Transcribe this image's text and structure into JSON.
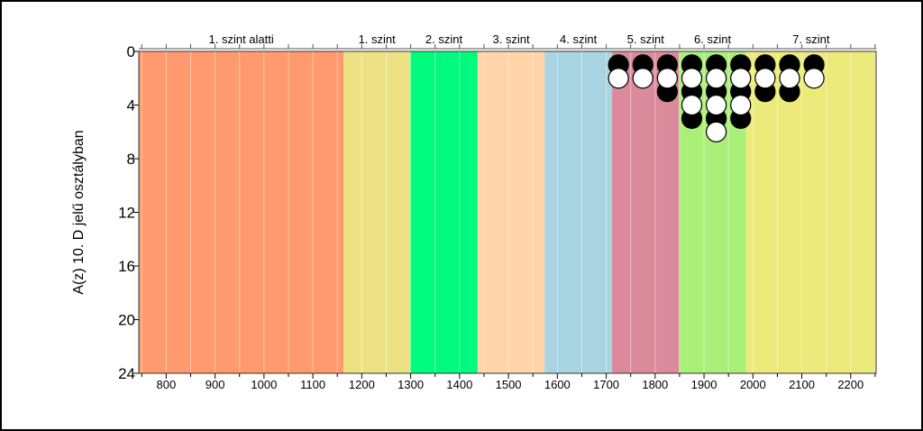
{
  "chart_data": {
    "type": "scatter",
    "ylabel": "A(z) 10. D jelű osztályban",
    "xlabel": "",
    "xlim": [
      744,
      2252
    ],
    "ylim": [
      0,
      24
    ],
    "y_inverted": true,
    "x_ticks": [
      800,
      900,
      1000,
      1100,
      1200,
      1300,
      1400,
      1500,
      1600,
      1700,
      1800,
      1900,
      2000,
      2100,
      2200
    ],
    "y_ticks": [
      0,
      4,
      8,
      12,
      16,
      20,
      24
    ],
    "bands": [
      {
        "label": "1. szint alatti",
        "from": 744,
        "to": 1163,
        "color": "#fe9a6d"
      },
      {
        "label": "1. szint",
        "from": 1163,
        "to": 1299,
        "color": "#ede283"
      },
      {
        "label": "2. szint",
        "from": 1299,
        "to": 1437,
        "color": "#00fa7d"
      },
      {
        "label": "3. szint",
        "from": 1437,
        "to": 1574,
        "color": "#ffd4a9"
      },
      {
        "label": "4. szint",
        "from": 1574,
        "to": 1712,
        "color": "#a9d4e1"
      },
      {
        "label": "5. szint",
        "from": 1712,
        "to": 1849,
        "color": "#da8a9b"
      },
      {
        "label": "6. szint",
        "from": 1849,
        "to": 1986,
        "color": "#a9ef78"
      },
      {
        "label": "7. szint",
        "from": 1986,
        "to": 2252,
        "color": "#ecea7b"
      }
    ],
    "series": [
      {
        "color": "#000000",
        "points": [
          [
            1725,
            1
          ],
          [
            1775,
            1
          ],
          [
            1825,
            1
          ],
          [
            1825,
            3
          ],
          [
            1875,
            1
          ],
          [
            1875,
            3
          ],
          [
            1875,
            5
          ],
          [
            1925,
            1
          ],
          [
            1925,
            3
          ],
          [
            1925,
            5
          ],
          [
            1975,
            1
          ],
          [
            1975,
            3
          ],
          [
            1975,
            5
          ],
          [
            2025,
            1
          ],
          [
            2025,
            3
          ],
          [
            2075,
            1
          ],
          [
            2075,
            3
          ],
          [
            2125,
            1
          ]
        ]
      },
      {
        "color": "#ffffff",
        "points": [
          [
            1725,
            2
          ],
          [
            1775,
            2
          ],
          [
            1825,
            2
          ],
          [
            1875,
            2
          ],
          [
            1875,
            4
          ],
          [
            1925,
            2
          ],
          [
            1925,
            4
          ],
          [
            1925,
            6
          ],
          [
            1975,
            2
          ],
          [
            1975,
            4
          ],
          [
            2025,
            2
          ],
          [
            2075,
            2
          ],
          [
            2125,
            2
          ]
        ]
      }
    ]
  }
}
